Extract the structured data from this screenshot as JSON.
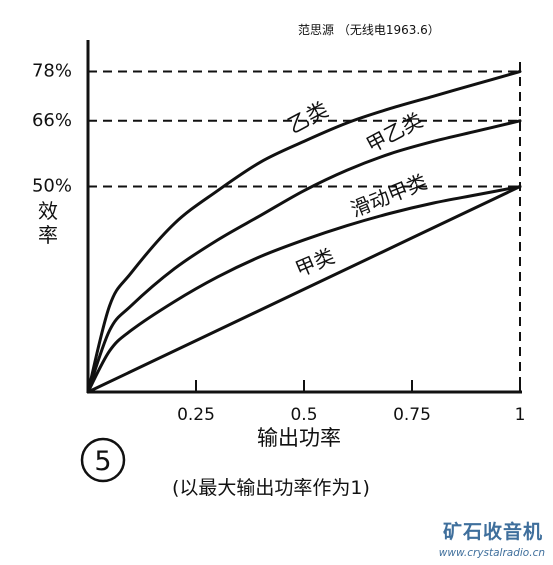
{
  "source_caption": "范思源 （无线电1963.6）",
  "figure_number": "5",
  "footnote": "(以最大输出功率作为1)",
  "watermark": {
    "name": "矿石收音机",
    "url": "www.crystalradio.cn"
  },
  "chart_data": {
    "type": "line",
    "xlabel": "输出功率",
    "ylabel": "效率",
    "xlim": [
      0,
      1
    ],
    "ylim": [
      0,
      0.85
    ],
    "x_ticks": [
      0.25,
      0.5,
      0.75,
      1
    ],
    "x_tick_labels": [
      "0.25",
      "0.5",
      "0.75",
      "1"
    ],
    "y_ticks": [
      0.5,
      0.66,
      0.78
    ],
    "y_tick_labels": [
      "50%",
      "66%",
      "78%"
    ],
    "series": [
      {
        "name": "乙类",
        "x": [
          0,
          0.05,
          0.1,
          0.2,
          0.3,
          0.4,
          0.5,
          0.6,
          0.7,
          0.8,
          0.9,
          1.0
        ],
        "y": [
          0,
          0.21,
          0.29,
          0.41,
          0.49,
          0.56,
          0.61,
          0.655,
          0.69,
          0.72,
          0.75,
          0.78
        ]
      },
      {
        "name": "甲乙类",
        "x": [
          0,
          0.05,
          0.1,
          0.2,
          0.3,
          0.4,
          0.5,
          0.6,
          0.7,
          0.8,
          0.9,
          1.0
        ],
        "y": [
          0,
          0.15,
          0.21,
          0.3,
          0.37,
          0.43,
          0.49,
          0.54,
          0.58,
          0.61,
          0.635,
          0.66
        ]
      },
      {
        "name": "滑动甲类",
        "x": [
          0,
          0.05,
          0.1,
          0.2,
          0.3,
          0.4,
          0.5,
          0.6,
          0.7,
          0.8,
          0.9,
          1.0
        ],
        "y": [
          0,
          0.1,
          0.15,
          0.22,
          0.28,
          0.33,
          0.37,
          0.405,
          0.435,
          0.46,
          0.48,
          0.5
        ]
      },
      {
        "name": "甲类",
        "x": [
          0,
          0.25,
          0.5,
          0.75,
          1.0
        ],
        "y": [
          0,
          0.125,
          0.25,
          0.375,
          0.5
        ]
      }
    ],
    "reference_lines": [
      0.5,
      0.66,
      0.78
    ],
    "grid": false
  }
}
